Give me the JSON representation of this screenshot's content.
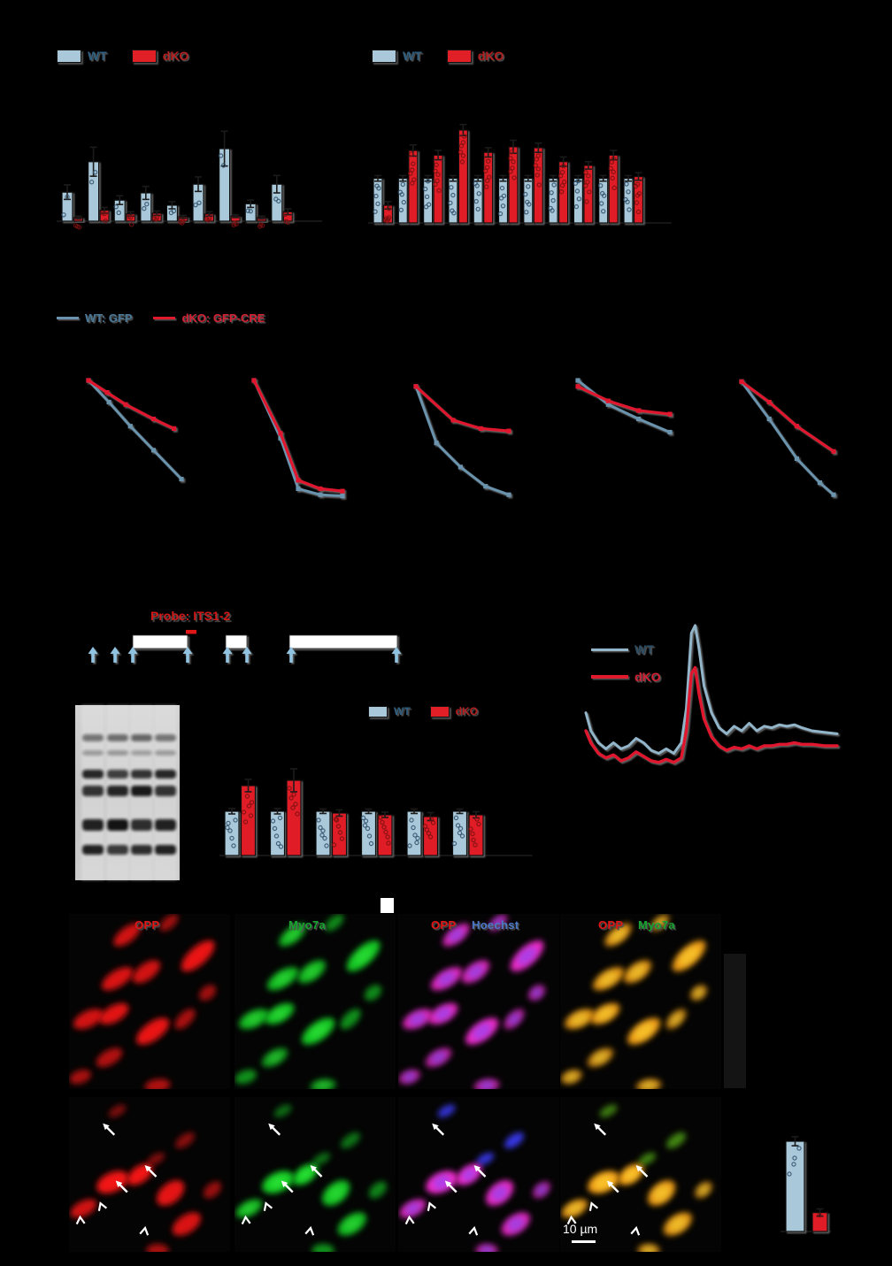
{
  "figure": {
    "background": "#000000",
    "axis_text_visible": false
  },
  "colors": {
    "wt_fill": "#a9c9da",
    "dko_fill": "#e01f26",
    "wt_line": "#6b93ad",
    "dko_line": "#e0192d",
    "profile_wt_line": "#92b5c9",
    "wt_text": "#2e5f80",
    "dko_text": "#b41f1f",
    "opp_label": "#e11515",
    "myo7a_label": "#17a52f",
    "hoechst_label": "#4b79c9",
    "diagram_arrow": "#8fc3e0",
    "probe_tick": "#e01515"
  },
  "legends": {
    "topA": {
      "wt": "WT",
      "dko": "dKO"
    },
    "topB": {
      "wt": "WT",
      "dko": "dKO"
    },
    "decay": {
      "wt": "WT: GFP",
      "dko": "dKO: GFP-CRE"
    },
    "mid": {
      "wt": "WT",
      "dko": "dKO"
    },
    "profile": {
      "wt": "WT",
      "dko": "dKO"
    }
  },
  "diagram": {
    "probe_label": "Probe: ITS1-2",
    "rrna_boxes": 3,
    "cleavage_arrows": 8
  },
  "gel": {
    "type": "northern-blot",
    "lanes": 4,
    "band_rows": 6
  },
  "microscopy": {
    "row1_labels": [
      [
        "OPP"
      ],
      [
        "Myo7a"
      ],
      [
        "OPP",
        "Hoechst"
      ],
      [
        "OPP",
        "Myo7a"
      ]
    ],
    "scale_bar": "10 µm"
  },
  "chart_data": [
    {
      "id": "barA",
      "type": "bar",
      "axis_text_visible": false,
      "series": [
        {
          "name": "WT",
          "values": [
            0.4,
            0.82,
            0.29,
            0.39,
            0.22,
            0.51,
            1.0,
            0.24,
            0.51
          ],
          "errors": [
            0.1,
            0.2,
            0.06,
            0.09,
            0.05,
            0.1,
            0.24,
            0.05,
            0.12
          ]
        },
        {
          "name": "dKO",
          "values": [
            0.05,
            0.15,
            0.1,
            0.11,
            0.06,
            0.1,
            0.07,
            0.05,
            0.13
          ],
          "errors": [
            0.02,
            0.04,
            0.03,
            0.03,
            0.02,
            0.03,
            0.02,
            0.02,
            0.04
          ]
        }
      ]
    },
    {
      "id": "barB",
      "type": "bar",
      "axis_text_visible": false,
      "series": [
        {
          "name": "WT",
          "values": [
            0.48,
            0.48,
            0.48,
            0.48,
            0.48,
            0.48,
            0.48,
            0.48,
            0.48,
            0.48,
            0.48
          ],
          "errors": [
            0.03,
            0.03,
            0.03,
            0.03,
            0.03,
            0.03,
            0.03,
            0.03,
            0.03,
            0.03,
            0.03
          ]
        },
        {
          "name": "dKO",
          "values": [
            0.19,
            0.78,
            0.73,
            1.0,
            0.76,
            0.82,
            0.81,
            0.66,
            0.62,
            0.73,
            0.5
          ],
          "errors": [
            0.04,
            0.06,
            0.05,
            0.06,
            0.05,
            0.07,
            0.05,
            0.05,
            0.04,
            0.05,
            0.04
          ]
        }
      ]
    },
    {
      "id": "decayPlots",
      "type": "line",
      "axis_text_visible": false,
      "series_names": [
        "WT: GFP",
        "dKO: GFP-CRE"
      ],
      "plots": [
        {
          "wt": [
            [
              0,
              1.0
            ],
            [
              0.22,
              0.82
            ],
            [
              0.45,
              0.62
            ],
            [
              0.7,
              0.42
            ],
            [
              1,
              0.18
            ]
          ],
          "dko": [
            [
              0,
              1.0
            ],
            [
              0.2,
              0.9
            ],
            [
              0.4,
              0.8
            ],
            [
              0.7,
              0.68
            ],
            [
              0.92,
              0.6
            ]
          ]
        },
        {
          "wt": [
            [
              0,
              1.0
            ],
            [
              0.3,
              0.52
            ],
            [
              0.5,
              0.1
            ],
            [
              0.75,
              0.05
            ],
            [
              1,
              0.04
            ]
          ],
          "dko": [
            [
              0,
              1.0
            ],
            [
              0.3,
              0.56
            ],
            [
              0.5,
              0.17
            ],
            [
              0.75,
              0.1
            ],
            [
              1,
              0.08
            ]
          ]
        },
        {
          "wt": [
            [
              0,
              0.95
            ],
            [
              0.22,
              0.48
            ],
            [
              0.48,
              0.28
            ],
            [
              0.75,
              0.12
            ],
            [
              1,
              0.05
            ]
          ],
          "dko": [
            [
              0,
              0.95
            ],
            [
              0.4,
              0.67
            ],
            [
              0.7,
              0.6
            ],
            [
              1,
              0.58
            ]
          ]
        },
        {
          "wt": [
            [
              0,
              1.0
            ],
            [
              0.33,
              0.8
            ],
            [
              0.66,
              0.68
            ],
            [
              1,
              0.57
            ]
          ],
          "dko": [
            [
              0,
              0.95
            ],
            [
              0.33,
              0.83
            ],
            [
              0.66,
              0.75
            ],
            [
              1,
              0.72
            ]
          ]
        },
        {
          "wt": [
            [
              0,
              0.99
            ],
            [
              0.3,
              0.68
            ],
            [
              0.6,
              0.35
            ],
            [
              0.85,
              0.15
            ],
            [
              1,
              0.05
            ]
          ],
          "dko": [
            [
              0,
              0.99
            ],
            [
              0.3,
              0.82
            ],
            [
              0.6,
              0.62
            ],
            [
              1,
              0.41
            ]
          ]
        }
      ]
    },
    {
      "id": "barF",
      "type": "bar",
      "axis_text_visible": false,
      "series": [
        {
          "name": "WT",
          "values": [
            1.0,
            1.0,
            1.0,
            1.0,
            1.0,
            1.0
          ],
          "errors": [
            0.06,
            0.06,
            0.05,
            0.05,
            0.05,
            0.05
          ]
        },
        {
          "name": "dKO",
          "values": [
            1.58,
            1.7,
            0.96,
            0.92,
            0.88,
            0.92
          ],
          "errors": [
            0.14,
            0.26,
            0.07,
            0.06,
            0.09,
            0.07
          ]
        }
      ]
    },
    {
      "id": "profileG",
      "type": "line",
      "axis_text_visible": false,
      "series": [
        {
          "name": "WT",
          "points": [
            [
              0,
              0.42
            ],
            [
              0.02,
              0.3
            ],
            [
              0.05,
              0.22
            ],
            [
              0.08,
              0.18
            ],
            [
              0.11,
              0.22
            ],
            [
              0.14,
              0.18
            ],
            [
              0.17,
              0.2
            ],
            [
              0.2,
              0.25
            ],
            [
              0.23,
              0.22
            ],
            [
              0.26,
              0.17
            ],
            [
              0.29,
              0.15
            ],
            [
              0.32,
              0.18
            ],
            [
              0.35,
              0.15
            ],
            [
              0.38,
              0.22
            ],
            [
              0.4,
              0.45
            ],
            [
              0.42,
              0.95
            ],
            [
              0.435,
              1.0
            ],
            [
              0.45,
              0.85
            ],
            [
              0.47,
              0.6
            ],
            [
              0.5,
              0.42
            ],
            [
              0.53,
              0.32
            ],
            [
              0.56,
              0.28
            ],
            [
              0.59,
              0.33
            ],
            [
              0.62,
              0.3
            ],
            [
              0.65,
              0.35
            ],
            [
              0.68,
              0.3
            ],
            [
              0.71,
              0.33
            ],
            [
              0.74,
              0.32
            ],
            [
              0.77,
              0.34
            ],
            [
              0.8,
              0.33
            ],
            [
              0.83,
              0.34
            ],
            [
              0.86,
              0.32
            ],
            [
              0.9,
              0.3
            ],
            [
              0.95,
              0.29
            ],
            [
              1,
              0.28
            ]
          ]
        },
        {
          "name": "dKO",
          "points": [
            [
              0,
              0.3
            ],
            [
              0.02,
              0.22
            ],
            [
              0.05,
              0.15
            ],
            [
              0.08,
              0.12
            ],
            [
              0.11,
              0.14
            ],
            [
              0.14,
              0.1
            ],
            [
              0.17,
              0.12
            ],
            [
              0.2,
              0.16
            ],
            [
              0.23,
              0.13
            ],
            [
              0.26,
              0.1
            ],
            [
              0.29,
              0.09
            ],
            [
              0.32,
              0.11
            ],
            [
              0.35,
              0.09
            ],
            [
              0.38,
              0.12
            ],
            [
              0.4,
              0.3
            ],
            [
              0.42,
              0.68
            ],
            [
              0.435,
              0.72
            ],
            [
              0.45,
              0.55
            ],
            [
              0.47,
              0.38
            ],
            [
              0.5,
              0.26
            ],
            [
              0.53,
              0.2
            ],
            [
              0.56,
              0.17
            ],
            [
              0.59,
              0.19
            ],
            [
              0.62,
              0.18
            ],
            [
              0.65,
              0.2
            ],
            [
              0.68,
              0.18
            ],
            [
              0.71,
              0.2
            ],
            [
              0.74,
              0.2
            ],
            [
              0.77,
              0.21
            ],
            [
              0.8,
              0.21
            ],
            [
              0.83,
              0.22
            ],
            [
              0.86,
              0.21
            ],
            [
              0.9,
              0.21
            ],
            [
              0.95,
              0.2
            ],
            [
              1,
              0.2
            ]
          ]
        }
      ]
    },
    {
      "id": "barJ",
      "type": "bar",
      "axis_text_visible": false,
      "series": [
        {
          "name": "WT",
          "values": [
            1.0
          ],
          "errors": [
            0.05
          ]
        },
        {
          "name": "dKO",
          "values": [
            0.21
          ],
          "errors": [
            0.04
          ]
        }
      ]
    }
  ]
}
